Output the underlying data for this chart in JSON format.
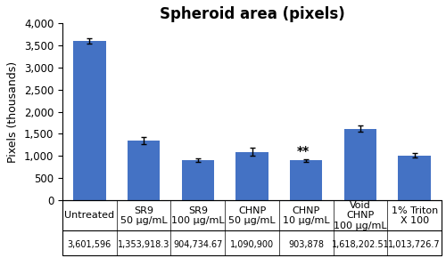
{
  "title": "Spheroid area (pixels)",
  "ylabel": "Pixels (thousands)",
  "categories": [
    "Untreated",
    "SR9\n50 μg/mL",
    "SR9\n100 μg/mL",
    "CHNP\n50 μg/mL",
    "CHNP\n10 μg/mL",
    "Void\nCHNP\n100 μg/mL",
    "1% Triton\nX 100"
  ],
  "values": [
    3601596,
    1353918.3,
    904734.67,
    1090900,
    903878,
    1618202.5,
    1013726.7
  ],
  "errors": [
    60000,
    80000,
    40000,
    90000,
    30000,
    80000,
    50000
  ],
  "bottom_labels": [
    "3,601,596",
    "1,353,918.3",
    "904,734.67",
    "1,090,900",
    "903,878",
    "1,618,202.51",
    "1,013,726.7"
  ],
  "bar_color": "#4472C4",
  "error_color": "black",
  "ylim": [
    0,
    4000000
  ],
  "yticks": [
    0,
    500000,
    1000000,
    1500000,
    2000000,
    2500000,
    3000000,
    3500000,
    4000000
  ],
  "ytick_labels": [
    "0",
    "500",
    "1,000",
    "1,500",
    "2,000",
    "2,500",
    "3,000",
    "3,500",
    "4,000"
  ],
  "significance_bar_idx": 4,
  "significance_text": "**",
  "title_fontsize": 12,
  "axis_label_fontsize": 9,
  "tick_fontsize": 8.5,
  "cat_fontsize": 8,
  "num_fontsize": 7
}
